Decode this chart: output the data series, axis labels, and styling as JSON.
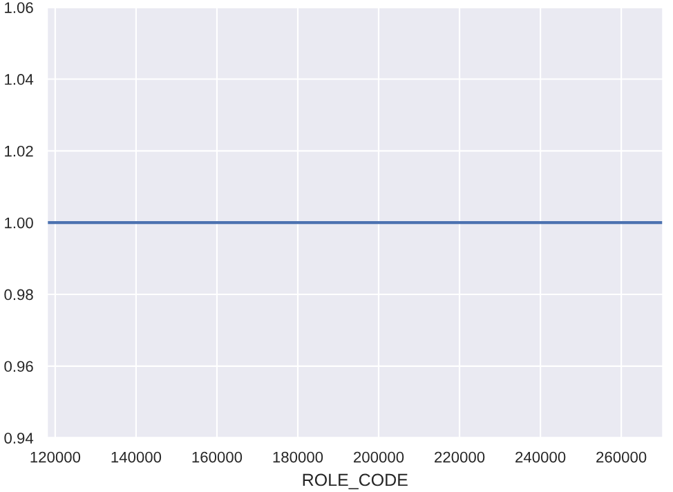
{
  "chart_data": {
    "type": "line",
    "xlabel": "ROLE_CODE",
    "x": [
      118000,
      270300
    ],
    "series": [
      {
        "color": "#4c72b0",
        "values": [
          1.0,
          1.0
        ]
      }
    ],
    "xlim": [
      118000,
      270300
    ],
    "xticks": [
      120000,
      140000,
      160000,
      180000,
      200000,
      220000,
      240000,
      260000
    ],
    "ylim": [
      0.94,
      1.06
    ],
    "yticks": [
      {
        "value": 0.94,
        "label": "0.94"
      },
      {
        "value": 0.96,
        "label": "0.96"
      },
      {
        "value": 0.98,
        "label": "0.98"
      },
      {
        "value": 1.0,
        "label": "1.00"
      },
      {
        "value": 1.02,
        "label": "1.02"
      },
      {
        "value": 1.04,
        "label": "1.04"
      },
      {
        "value": 1.06,
        "label": "1.06"
      }
    ],
    "grid": true,
    "marker": "none",
    "line_style": "solid",
    "legend": false
  }
}
